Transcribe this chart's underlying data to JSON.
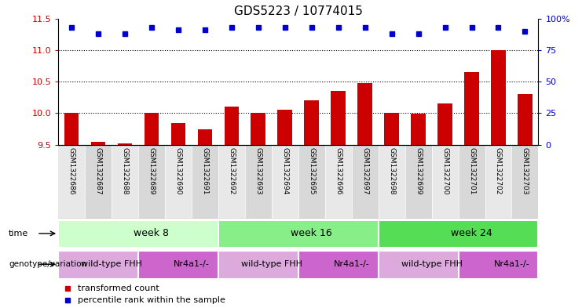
{
  "title": "GDS5223 / 10774015",
  "samples": [
    "GSM1322686",
    "GSM1322687",
    "GSM1322688",
    "GSM1322689",
    "GSM1322690",
    "GSM1322691",
    "GSM1322692",
    "GSM1322693",
    "GSM1322694",
    "GSM1322695",
    "GSM1322696",
    "GSM1322697",
    "GSM1322698",
    "GSM1322699",
    "GSM1322700",
    "GSM1322701",
    "GSM1322702",
    "GSM1322703"
  ],
  "bar_values": [
    10.0,
    9.55,
    9.52,
    10.0,
    9.85,
    9.75,
    10.1,
    10.0,
    10.05,
    10.2,
    10.35,
    10.48,
    10.0,
    9.99,
    10.15,
    10.65,
    11.0,
    10.3
  ],
  "dot_values": [
    93,
    88,
    88,
    93,
    91,
    91,
    93,
    93,
    93,
    93,
    93,
    93,
    88,
    88,
    93,
    93,
    93,
    90
  ],
  "bar_color": "#cc0000",
  "dot_color": "#0000cc",
  "ylim_left": [
    9.5,
    11.5
  ],
  "ylim_right": [
    0,
    100
  ],
  "yticks_left": [
    9.5,
    10.0,
    10.5,
    11.0,
    11.5
  ],
  "yticks_right": [
    0,
    25,
    50,
    75,
    100
  ],
  "ytick_labels_right": [
    "0",
    "25",
    "50",
    "75",
    "100%"
  ],
  "gridlines": [
    10.0,
    10.5,
    11.0
  ],
  "time_groups": [
    {
      "label": "week 8",
      "start": 0,
      "end": 6,
      "color": "#ccffcc"
    },
    {
      "label": "week 16",
      "start": 6,
      "end": 12,
      "color": "#88ee88"
    },
    {
      "label": "week 24",
      "start": 12,
      "end": 18,
      "color": "#55dd55"
    }
  ],
  "genotype_groups": [
    {
      "label": "wild-type FHH",
      "start": 0,
      "end": 3,
      "color": "#ddaadd"
    },
    {
      "label": "Nr4a1-/-",
      "start": 3,
      "end": 6,
      "color": "#cc66cc"
    },
    {
      "label": "wild-type FHH",
      "start": 6,
      "end": 9,
      "color": "#ddaadd"
    },
    {
      "label": "Nr4a1-/-",
      "start": 9,
      "end": 12,
      "color": "#cc66cc"
    },
    {
      "label": "wild-type FHH",
      "start": 12,
      "end": 15,
      "color": "#ddaadd"
    },
    {
      "label": "Nr4a1-/-",
      "start": 15,
      "end": 18,
      "color": "#cc66cc"
    }
  ],
  "legend_bar_label": "transformed count",
  "legend_dot_label": "percentile rank within the sample",
  "background_color": "#ffffff",
  "axis_label_color_left": "#cc0000",
  "axis_label_color_right": "#0000cc",
  "sample_col_colors": [
    "#e8e8e8",
    "#d8d8d8"
  ]
}
